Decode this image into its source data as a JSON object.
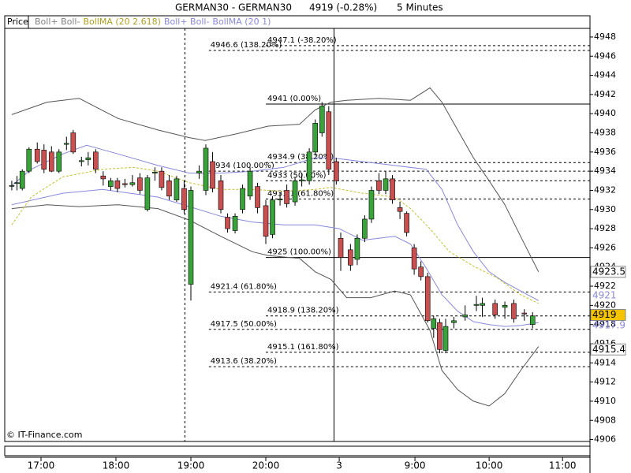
{
  "chart_data": {
    "type": "candlestick",
    "title": "GERMAN30 - GERMAN30",
    "last": "4919 (-0.28%)",
    "interval": "5 Minutes",
    "panel_label": "Price",
    "legend": [
      {
        "text": "Boll+ Boll-",
        "color": "#808080"
      },
      {
        "text": "BollMA (20 2.618)",
        "color": "#b0a020"
      },
      {
        "text": "Boll+ Boll-",
        "color": "#8888dd"
      },
      {
        "text": "BollMA (20 1)",
        "color": "#8888dd"
      }
    ],
    "watermark": "© IT-Finance.com",
    "up_color": "#3aa23a",
    "down_color": "#c85050",
    "x": [
      16.61,
      16.68,
      16.75,
      16.84,
      16.95,
      17.04,
      17.14,
      17.24,
      17.34,
      17.43,
      17.54,
      17.63,
      17.73,
      17.83,
      17.93,
      18.02,
      18.12,
      18.22,
      18.32,
      18.42,
      18.52,
      18.61,
      18.71,
      18.81,
      18.91,
      19.0,
      19.11,
      19.2,
      19.29,
      19.4,
      19.49,
      19.59,
      19.69,
      19.79,
      19.89,
      20.0,
      20.09,
      20.19,
      20.28,
      20.39,
      20.48,
      20.58,
      20.66,
      20.75,
      20.84,
      20.94,
      21.0,
      21.13,
      21.22,
      21.32,
      21.41,
      21.51,
      21.6,
      21.69,
      21.79,
      21.88,
      21.98,
      22.07,
      22.16,
      22.24,
      22.32,
      22.4,
      22.51,
      22.66,
      22.81,
      22.89,
      23.06,
      23.19,
      23.31,
      23.45,
      23.56
    ],
    "open": [
      4932.5,
      4932.8,
      4932.2,
      4934,
      4936.3,
      4936.2,
      4936,
      4934,
      4936.8,
      4938,
      4935,
      4935.2,
      4936,
      4933.5,
      4932.4,
      4933,
      4932.7,
      4932.6,
      4933.3,
      4930,
      4933.8,
      4934,
      4933,
      4931,
      4932.2,
      4922.2,
      4933.8,
      4932,
      4935,
      4933,
      4929.2,
      4927.8,
      4930,
      4931.4,
      4932.4,
      4930.4,
      4927.4,
      4931,
      4932,
      4930.8,
      4933,
      4933,
      4936,
      4938,
      4940.2,
      4935,
      4927,
      4925.8,
      4924.8,
      4927,
      4929,
      4933,
      4932,
      4933.2,
      4930.2,
      4929.6,
      4926,
      4924,
      4923,
      4917.6,
      4918.2,
      4915.3,
      4918.2,
      4918.8,
      4920,
      4920,
      4920.2,
      4919.8,
      4920.2,
      4919.2,
      4918
    ],
    "high": [
      4933,
      4933.5,
      4934.2,
      4936.5,
      4937,
      4936.8,
      4936.6,
      4936.3,
      4937.6,
      4938.3,
      4935.5,
      4936,
      4936.3,
      4934,
      4933.3,
      4933.3,
      4933.2,
      4933.6,
      4933.8,
      4933.6,
      4934.4,
      4934.4,
      4933.6,
      4933.5,
      4933,
      4932.4,
      4934.6,
      4936.8,
      4936,
      4933.6,
      4929.6,
      4929.6,
      4932.6,
      4934.4,
      4932.8,
      4931,
      4931.4,
      4931.8,
      4932.6,
      4933.4,
      4933.8,
      4936.4,
      4939.4,
      4941.2,
      4940.8,
      4935.4,
      4927.6,
      4926.4,
      4927.4,
      4929.4,
      4932.4,
      4933.8,
      4934,
      4933.6,
      4930.8,
      4929.8,
      4926.4,
      4924.6,
      4923.4,
      4918.9,
      4918.6,
      4918.6,
      4918.8,
      4920,
      4921,
      4920.8,
      4920.6,
      4920.4,
      4920.6,
      4919.6,
      4919.3
    ],
    "low": [
      4932,
      4932,
      4932,
      4933.8,
      4934.8,
      4933.8,
      4933.9,
      4933.8,
      4936.2,
      4935.8,
      4934.5,
      4934.6,
      4933.8,
      4932.5,
      4932,
      4931.8,
      4932.3,
      4932.4,
      4931.6,
      4929.8,
      4933,
      4932,
      4931,
      4930.8,
      4929.6,
      4920.5,
      4933.2,
      4931.5,
      4931.8,
      4929.6,
      4927.6,
      4927.5,
      4929.6,
      4931,
      4929.6,
      4926.4,
      4927,
      4930.4,
      4930.2,
      4930.4,
      4932.4,
      4932.6,
      4935.6,
      4937.6,
      4933.6,
      4932.6,
      4923.6,
      4923.6,
      4924.2,
      4926.6,
      4928.6,
      4931.6,
      4931.6,
      4930.6,
      4929,
      4927.2,
      4923.2,
      4922.6,
      4918.2,
      4916.6,
      4915,
      4915,
      4917.6,
      4918.4,
      4919.4,
      4918.8,
      4918.6,
      4918.6,
      4918.2,
      4918.4,
      4917.6
    ],
    "close": [
      4932.5,
      4932.8,
      4934,
      4936.3,
      4935,
      4934.2,
      4934,
      4936,
      4936.9,
      4936,
      4935.1,
      4935.4,
      4934.2,
      4933.2,
      4933,
      4932.2,
      4932.6,
      4932.8,
      4932,
      4933.3,
      4933.9,
      4932.3,
      4931.4,
      4933.2,
      4930,
      4932,
      4934,
      4936.4,
      4932.2,
      4930,
      4928,
      4929.3,
      4932.2,
      4934,
      4930.2,
      4927.2,
      4931,
      4931.1,
      4930.6,
      4933,
      4933.1,
      4936,
      4939,
      4940.8,
      4934.2,
      4933,
      4925,
      4924.2,
      4927,
      4929,
      4932,
      4932,
      4933.2,
      4931,
      4929.8,
      4927.6,
      4923.8,
      4923,
      4918.4,
      4918.6,
      4915.4,
      4917.8,
      4918.4,
      4919,
      4920.1,
      4920.2,
      4919,
      4920,
      4918.6,
      4919.1,
      4918.9
    ],
    "series": [
      {
        "color": "#555555",
        "dash": false,
        "x": [
          16.61,
          17.08,
          17.51,
          18.03,
          18.56,
          18.98,
          19.19,
          19.61,
          20.03,
          20.45,
          20.66,
          20.87,
          21.08,
          21.51,
          21.93,
          22.19,
          22.35,
          22.56,
          22.77,
          22.98,
          23.19,
          23.4,
          23.64
        ],
        "values": [
          4939.9,
          4941.2,
          4941.6,
          4939.5,
          4938.3,
          4937.5,
          4937.2,
          4937.9,
          4938.7,
          4938.9,
          4940.4,
          4941.2,
          4941.4,
          4941.6,
          4941.4,
          4942.7,
          4941.2,
          4938.3,
          4935.4,
          4933.0,
          4930.5,
          4927.2,
          4923.5
        ]
      },
      {
        "color": "#555555",
        "dash": false,
        "x": [
          16.61,
          17.08,
          17.51,
          18.03,
          18.56,
          18.98,
          19.4,
          19.82,
          20.03,
          20.45,
          20.66,
          20.87,
          21.08,
          21.4,
          21.72,
          21.93,
          22.19,
          22.35,
          22.56,
          22.77,
          22.98,
          23.19,
          23.4,
          23.64
        ],
        "values": [
          4930.1,
          4930.5,
          4930.3,
          4930.5,
          4930.1,
          4928.9,
          4927.2,
          4925.6,
          4925.2,
          4924.9,
          4923.5,
          4922.7,
          4920.8,
          4920.8,
          4921.5,
          4921.1,
          4917.4,
          4913.2,
          4911.2,
          4910.0,
          4909.5,
          4910.8,
          4913.2,
          4915.7
        ]
      },
      {
        "color": "#8888dd",
        "dash": false,
        "x": [
          16.61,
          16.87,
          17.29,
          17.61,
          18.03,
          18.56,
          18.98,
          19.4,
          19.82,
          20.24,
          20.66,
          20.87,
          21.29,
          21.72,
          22.14,
          22.35,
          22.56,
          22.77,
          22.98,
          23.19,
          23.4,
          23.64
        ],
        "values": [
          4932.5,
          4934.2,
          4935.8,
          4936.7,
          4935.8,
          4934.6,
          4933.8,
          4933.8,
          4934.0,
          4934.4,
          4935.4,
          4935.4,
          4935.0,
          4934.6,
          4934.2,
          4932.1,
          4928.4,
          4925.6,
          4923.5,
          4922.4,
          4921.5,
          4920.5
        ]
      },
      {
        "color": "#8888dd",
        "dash": false,
        "x": [
          16.61,
          17.29,
          17.82,
          18.56,
          18.98,
          19.4,
          19.82,
          20.24,
          20.66,
          20.98,
          21.29,
          21.72,
          21.93,
          22.14,
          22.35,
          22.56,
          22.77,
          22.98,
          23.19,
          23.4,
          23.64
        ],
        "values": [
          4930.5,
          4931.7,
          4932.1,
          4931.3,
          4930.3,
          4929.3,
          4928.7,
          4928.4,
          4928.4,
          4928.0,
          4926.8,
          4927.2,
          4926.4,
          4923.9,
          4921.1,
          4919.4,
          4918.3,
          4918.0,
          4917.8,
          4917.9,
          4918.2
        ]
      },
      {
        "color": "#c8c030",
        "dash": true,
        "x": [
          16.61,
          16.87,
          17.29,
          17.82,
          18.24,
          18.56,
          18.98,
          19.4,
          19.82,
          20.24,
          20.66,
          20.87,
          21.29,
          21.72,
          21.93,
          22.19,
          22.45,
          22.77,
          23.08,
          23.4,
          23.64
        ],
        "values": [
          4928.4,
          4931.3,
          4933.4,
          4934.2,
          4934.4,
          4934.0,
          4932.8,
          4932.1,
          4932.1,
          4931.9,
          4932.1,
          4932.3,
          4931.7,
          4931.3,
          4930.1,
          4928.0,
          4925.6,
          4924.1,
          4922.9,
          4921.1,
          4920.2
        ]
      }
    ],
    "levels": [
      {
        "value": 4947.1,
        "label": "4947.1 (-38.20%)",
        "x_start": 20.0,
        "dash": true
      },
      {
        "value": 4946.6,
        "label": "4946.6 (138.20%)",
        "x_start": 19.24,
        "dash": true
      },
      {
        "value": 4941,
        "label": "4941 (0.00%)",
        "x_start": 20.0,
        "dash": false
      },
      {
        "value": 4934.9,
        "label": "4934.9 (38.20%)",
        "x_start": 20.0,
        "dash": true
      },
      {
        "value": 4934,
        "label": "4934 (100.00%)",
        "x_start": 19.24,
        "dash": true
      },
      {
        "value": 4933,
        "label": "4933 (50.00%)",
        "x_start": 20.0,
        "dash": true
      },
      {
        "value": 4931.1,
        "label": "4931.1 (61.80%)",
        "x_start": 20.0,
        "dash": true
      },
      {
        "value": 4925,
        "label": "4925 (100.00%)",
        "x_start": 20.0,
        "dash": false
      },
      {
        "value": 4921.4,
        "label": "4921.4 (61.80%)",
        "x_start": 19.24,
        "dash": true
      },
      {
        "value": 4918.9,
        "label": "4918.9 (138.20%)",
        "x_start": 20.0,
        "dash": true
      },
      {
        "value": 4917.5,
        "label": "4917.5 (50.00%)",
        "x_start": 19.24,
        "dash": true
      },
      {
        "value": 4915.1,
        "label": "4915.1 (161.80%)",
        "x_start": 20.0,
        "dash": true
      },
      {
        "value": 4913.6,
        "label": "4913.6 (38.20%)",
        "x_start": 19.24,
        "dash": true
      }
    ],
    "vlines": [
      {
        "x": 18.92,
        "dash": true
      },
      {
        "x": 20.91,
        "dash": false
      }
    ],
    "price_labels": [
      {
        "value": 4923.5,
        "color": "#000000",
        "box": "#ffffff"
      },
      {
        "value": 4921,
        "color": "#8888dd",
        "box": null
      },
      {
        "value": 4917.9,
        "color": "#8888dd",
        "box": null
      },
      {
        "value": 4919,
        "color": "#000000",
        "box": "#f5c400"
      },
      {
        "value": 4915.4,
        "color": "#000000",
        "box": "#ffffff"
      }
    ],
    "xlim": [
      16.516,
      24.326
    ],
    "xticks": [
      {
        "value": 17,
        "label": "17:00"
      },
      {
        "value": 18,
        "label": "18:00"
      },
      {
        "value": 19,
        "label": "19:00"
      },
      {
        "value": 20,
        "label": "20:00"
      },
      {
        "value": 20.98,
        "label": "3"
      },
      {
        "value": 21.99,
        "label": "9:00"
      },
      {
        "value": 22.98,
        "label": "10:00"
      },
      {
        "value": 23.96,
        "label": "11:00"
      }
    ],
    "ylim": [
      4905.8,
      4948.9
    ],
    "yticks": [
      4906,
      4908,
      4910,
      4912,
      4914,
      4916,
      4918,
      4920,
      4922,
      4924,
      4926,
      4928,
      4930,
      4932,
      4934,
      4936,
      4938,
      4940,
      4942,
      4944,
      4946,
      4948
    ]
  }
}
